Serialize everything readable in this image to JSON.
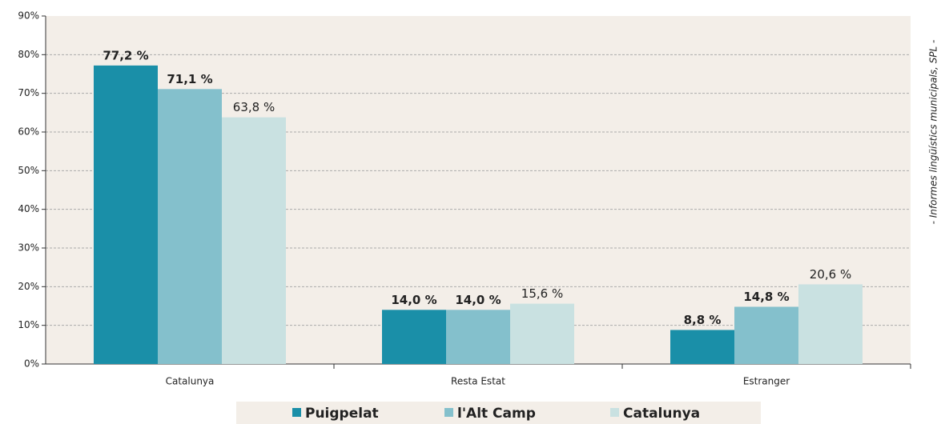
{
  "chart_data": {
    "type": "bar",
    "categories": [
      "Catalunya",
      "Resta Estat",
      "Estranger"
    ],
    "series": [
      {
        "name": "Puigpelat",
        "color": "#1a8fa8",
        "values": [
          77.2,
          14.0,
          8.8
        ],
        "value_labels": [
          "77,2 %",
          "14,0 %",
          "8,8 %"
        ]
      },
      {
        "name": "l'Alt Camp",
        "color": "#84c0cc",
        "values": [
          71.1,
          14.0,
          14.8
        ],
        "value_labels": [
          "71,1 %",
          "14,0 %",
          "14,8 %"
        ]
      },
      {
        "name": "Catalunya",
        "color": "#c9e1e1",
        "values": [
          63.8,
          15.6,
          20.6
        ],
        "value_labels": [
          "63,8 %",
          "15,6 %",
          "20,6 %"
        ]
      }
    ],
    "ylim": [
      0,
      90
    ],
    "yticks": [
      {
        "value": 0,
        "label": "0%"
      },
      {
        "value": 10,
        "label": "10%"
      },
      {
        "value": 20,
        "label": "20%"
      },
      {
        "value": 30,
        "label": "30%"
      },
      {
        "value": 40,
        "label": "40%"
      },
      {
        "value": 50,
        "label": "50%"
      },
      {
        "value": 60,
        "label": "60%"
      },
      {
        "value": 70,
        "label": "70%"
      },
      {
        "value": 80,
        "label": "80%"
      },
      {
        "value": 90,
        "label": "90%"
      }
    ],
    "grid": true,
    "annotation": "- Informes lingüístics municipals, SPL -"
  }
}
